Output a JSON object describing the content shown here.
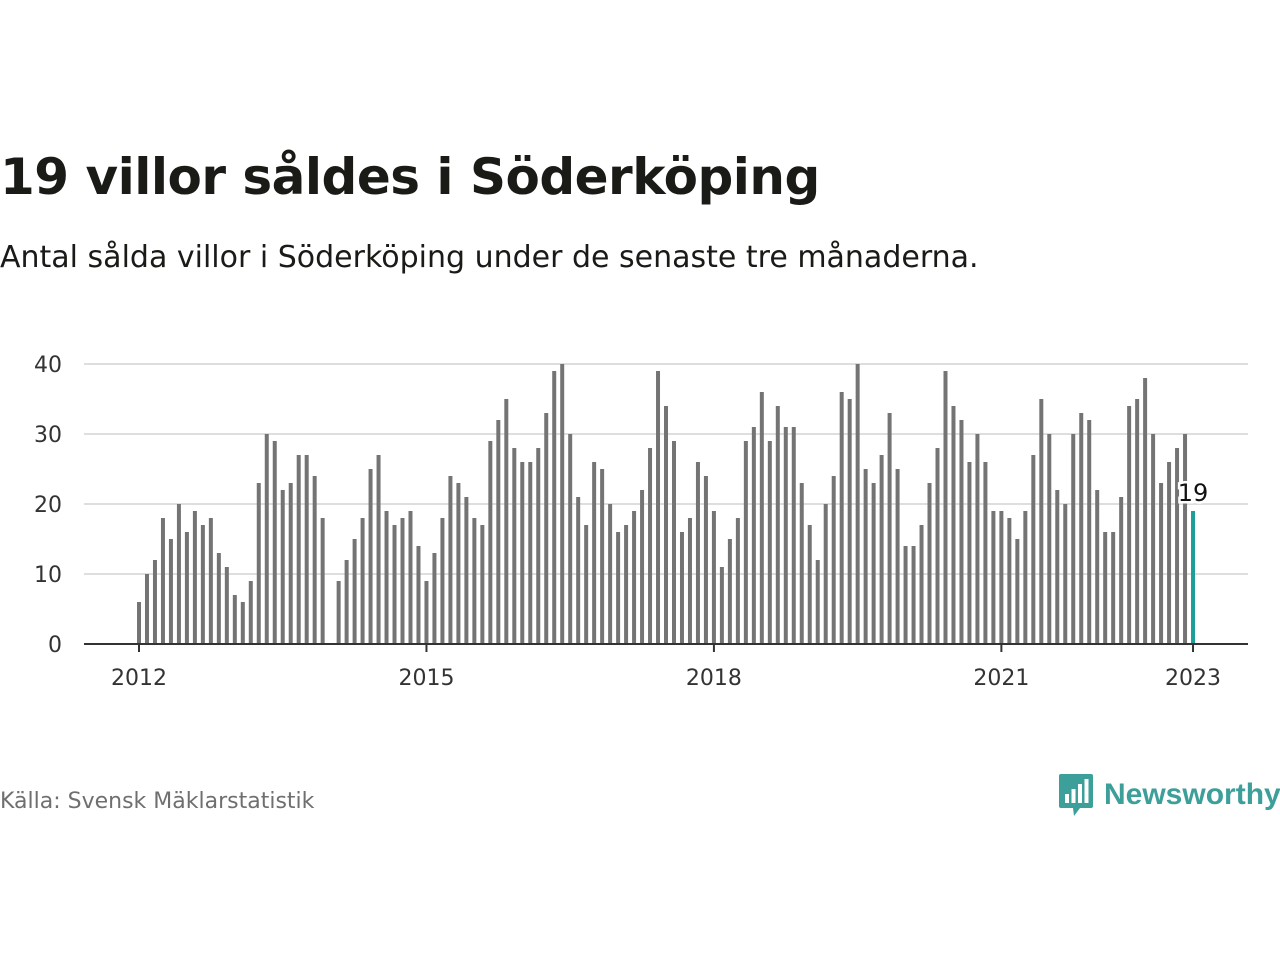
{
  "header": {
    "title": "19 villor såldes i Söderköping",
    "subtitle": "Antal sålda villor i Söderköping under de senaste tre månaderna."
  },
  "footer": {
    "source": "Källa: Svensk Mäklarstatistik",
    "brand": "Newsworthy"
  },
  "colors": {
    "bar": "#747474",
    "highlight": "#1e9e98",
    "grid": "#dedede",
    "axis": "#333333",
    "brand": "#3c9f99"
  },
  "chart_data": {
    "type": "bar",
    "title": "19 villor såldes i Söderköping",
    "subtitle": "Antal sålda villor i Söderköping under de senaste tre månaderna.",
    "xlabel": "",
    "ylabel": "",
    "ylim": [
      0,
      40
    ],
    "yticks": [
      0,
      10,
      20,
      30,
      40
    ],
    "xticks": [
      "2012",
      "2015",
      "2018",
      "2021",
      "2023"
    ],
    "grid": true,
    "start": "2012-01",
    "end": "2023-01",
    "frequency": "monthly",
    "values": [
      6,
      10,
      12,
      18,
      15,
      20,
      16,
      19,
      17,
      18,
      13,
      11,
      7,
      6,
      9,
      23,
      30,
      29,
      22,
      23,
      27,
      27,
      24,
      18,
      null,
      9,
      12,
      15,
      18,
      25,
      27,
      19,
      17,
      18,
      19,
      14,
      9,
      13,
      18,
      24,
      23,
      21,
      18,
      17,
      29,
      32,
      35,
      28,
      26,
      26,
      28,
      33,
      39,
      40,
      30,
      21,
      17,
      26,
      25,
      20,
      16,
      17,
      19,
      22,
      28,
      39,
      34,
      29,
      16,
      18,
      26,
      24,
      19,
      11,
      15,
      18,
      29,
      31,
      36,
      29,
      34,
      31,
      31,
      23,
      17,
      12,
      20,
      24,
      36,
      35,
      40,
      25,
      23,
      27,
      33,
      25,
      14,
      14,
      17,
      23,
      28,
      39,
      34,
      32,
      26,
      30,
      26,
      19,
      19,
      18,
      15,
      19,
      27,
      35,
      30,
      22,
      20,
      30,
      33,
      32,
      22,
      16,
      16,
      21,
      34,
      35,
      38,
      30,
      23,
      26,
      28,
      30,
      19
    ],
    "highlight": {
      "date": "2023-01",
      "value": 19,
      "label": "19"
    }
  }
}
